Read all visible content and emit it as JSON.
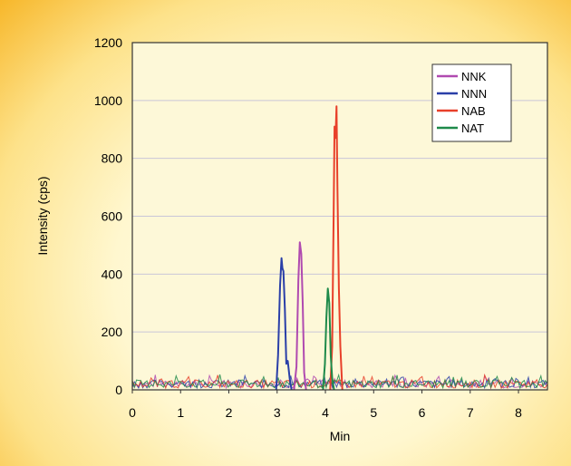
{
  "chart_data": {
    "type": "line",
    "xlabel": "Min",
    "ylabel": "Intensity (cps)",
    "xlim": [
      0,
      8.6
    ],
    "ylim": [
      0,
      1200
    ],
    "xticks": [
      "0",
      "1",
      "2",
      "3",
      "4",
      "5",
      "6",
      "7",
      "8"
    ],
    "yticks": [
      "0",
      "200",
      "400",
      "600",
      "800",
      "1000",
      "1200"
    ],
    "grid": "horizontal",
    "legend_position": "top-right",
    "series": [
      {
        "name": "NNK",
        "color": "#b04ab0",
        "x": [
          3.35,
          3.4,
          3.44,
          3.47,
          3.5,
          3.53,
          3.56,
          3.6
        ],
        "y": [
          0,
          80,
          380,
          510,
          470,
          300,
          60,
          0
        ]
      },
      {
        "name": "NNN",
        "color": "#2a3fa8",
        "x": [
          2.98,
          3.02,
          3.06,
          3.09,
          3.11,
          3.13,
          3.16,
          3.19,
          3.22,
          3.26,
          3.3
        ],
        "y": [
          0,
          120,
          360,
          455,
          420,
          410,
          280,
          90,
          100,
          40,
          0
        ]
      },
      {
        "name": "NAB",
        "color": "#e8402a",
        "x": [
          4.1,
          4.14,
          4.17,
          4.19,
          4.21,
          4.23,
          4.25,
          4.28,
          4.31,
          4.35
        ],
        "y": [
          0,
          150,
          600,
          910,
          870,
          980,
          700,
          350,
          150,
          0
        ]
      },
      {
        "name": "NAT",
        "color": "#1e8a4a",
        "x": [
          3.95,
          3.99,
          4.02,
          4.05,
          4.08,
          4.11,
          4.14,
          4.18
        ],
        "y": [
          0,
          90,
          250,
          350,
          300,
          120,
          40,
          0
        ]
      }
    ]
  }
}
